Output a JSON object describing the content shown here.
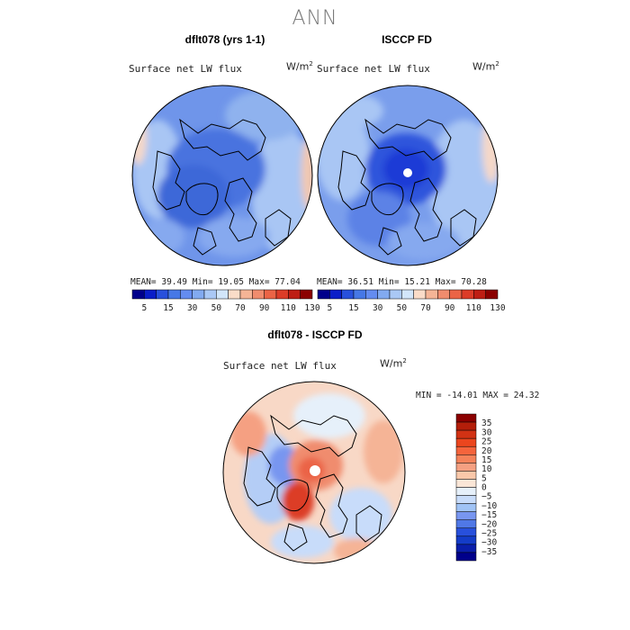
{
  "season": "ANN",
  "panels": {
    "model": {
      "title": "dflt078 (yrs 1-1)",
      "variable": "Surface net LW flux",
      "units_base": "W/m",
      "units_exp": "2",
      "mean_label": "MEAN=",
      "mean": "39.49",
      "min_label": "Min=",
      "min": "19.05",
      "max_label": "Max=",
      "max": "77.04"
    },
    "obs": {
      "title": "ISCCP FD",
      "variable": "Surface net LW flux",
      "units_base": "W/m",
      "units_exp": "2",
      "mean_label": "MEAN=",
      "mean": "36.51",
      "min_label": "Min=",
      "min": "15.21",
      "max_label": "Max=",
      "max": "70.28"
    },
    "diff": {
      "title": "dflt078 - ISCCP FD",
      "variable": "Surface net LW flux",
      "units_base": "W/m",
      "units_exp": "2",
      "min_label": "MIN =",
      "min": "-14.01",
      "max_label": "MAX =",
      "max": "24.32"
    }
  },
  "chart_data": [
    {
      "type": "heatmap",
      "projection": "north-polar-stereographic",
      "title": "dflt078 (yrs 1-1)",
      "variable": "Surface net LW flux",
      "units": "W/m2",
      "stats": {
        "mean": 39.49,
        "min": 19.05,
        "max": 77.04
      },
      "colorbar": {
        "orientation": "horizontal",
        "levels": [
          5,
          10,
          15,
          20,
          30,
          40,
          50,
          60,
          70,
          80,
          90,
          100,
          110,
          120,
          130
        ],
        "tick_labels": [
          "5",
          "15",
          "30",
          "50",
          "70",
          "90",
          "110",
          "130"
        ],
        "colors": [
          "#00008b",
          "#0a1ec8",
          "#2850dc",
          "#4678e6",
          "#648cf0",
          "#82aaf0",
          "#aac8f5",
          "#d2e6fa",
          "#fadcc8",
          "#f5b496",
          "#f08c6e",
          "#eb6446",
          "#dc3c28",
          "#be1e14",
          "#8b0000"
        ]
      }
    },
    {
      "type": "heatmap",
      "projection": "north-polar-stereographic",
      "title": "ISCCP FD",
      "variable": "Surface net LW flux",
      "units": "W/m2",
      "stats": {
        "mean": 36.51,
        "min": 15.21,
        "max": 70.28
      },
      "colorbar": {
        "orientation": "horizontal",
        "levels": [
          5,
          10,
          15,
          20,
          30,
          40,
          50,
          60,
          70,
          80,
          90,
          100,
          110,
          120,
          130
        ],
        "tick_labels": [
          "5",
          "15",
          "30",
          "50",
          "70",
          "90",
          "110",
          "130"
        ],
        "colors": [
          "#00008b",
          "#0a1ec8",
          "#2850dc",
          "#4678e6",
          "#648cf0",
          "#82aaf0",
          "#aac8f5",
          "#d2e6fa",
          "#fadcc8",
          "#f5b496",
          "#f08c6e",
          "#eb6446",
          "#dc3c28",
          "#be1e14",
          "#8b0000"
        ]
      }
    },
    {
      "type": "heatmap",
      "projection": "north-polar-stereographic",
      "title": "dflt078 - ISCCP FD",
      "variable": "Surface net LW flux",
      "units": "W/m2",
      "stats": {
        "min": -14.01,
        "max": 24.32
      },
      "colorbar": {
        "orientation": "vertical",
        "tick_labels": [
          "35",
          "30",
          "25",
          "20",
          "15",
          "10",
          "5",
          "0",
          "−5",
          "−10",
          "−15",
          "−20",
          "−25",
          "−30",
          "−35"
        ],
        "colors": [
          "#8b0000",
          "#b41e0a",
          "#d23214",
          "#eb461e",
          "#f5643c",
          "#f5825a",
          "#f5a082",
          "#fac8aa",
          "#fae6d7",
          "#e6f0fa",
          "#c8dcfa",
          "#a0c3f5",
          "#7896f0",
          "#5078e6",
          "#2850dc",
          "#143cc8",
          "#0a1eaa",
          "#00008b"
        ]
      }
    }
  ]
}
